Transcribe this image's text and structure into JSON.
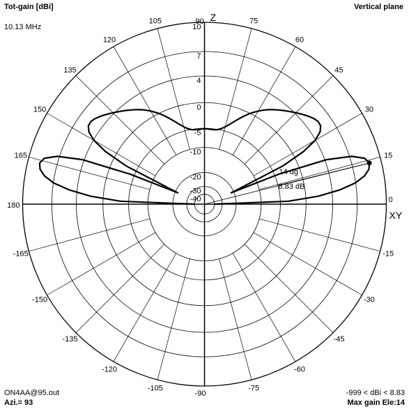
{
  "header": {
    "title": "Tot-gain [dBi]",
    "frequency": "10.13 MHz",
    "plane": "Vertical plane"
  },
  "footer": {
    "file": "ON4AA@95.out",
    "azimuth": "Azi.= 93",
    "range": "-999 < dBi < 8.83",
    "max_gain": "Max gain Ele:14"
  },
  "axis_labels": {
    "z": "Z",
    "xy": "XY"
  },
  "chart_data": {
    "type": "polar",
    "radial_scale": "log-periodic dBi",
    "radial_ticks": [
      "10",
      "7",
      "4",
      "0",
      "-5",
      "-10",
      "-20",
      "-30",
      "-40"
    ],
    "radial_tick_values": [
      10,
      7,
      4,
      0,
      -5,
      -10,
      -20,
      -30,
      -40
    ],
    "angle_ticks": [
      "0",
      "15",
      "30",
      "45",
      "60",
      "75",
      "90",
      "105",
      "120",
      "135",
      "150",
      "165",
      "180",
      "-165",
      "-150",
      "-135",
      "-120",
      "-105",
      "-90",
      "-75",
      "-60",
      "-45",
      "-30",
      "-15"
    ],
    "angle_tick_values": [
      0,
      15,
      30,
      45,
      60,
      75,
      90,
      105,
      120,
      135,
      150,
      165,
      180,
      -165,
      -150,
      -135,
      -120,
      -105,
      -90,
      -75,
      -60,
      -45,
      -30,
      -15
    ],
    "series": [
      {
        "elevation_deg": [
          0,
          2,
          4,
          6,
          8,
          10,
          12,
          14,
          16,
          18,
          20,
          22,
          23,
          24,
          26,
          28,
          30,
          32,
          34,
          36,
          38,
          40,
          42,
          44,
          46,
          48,
          50,
          52,
          54,
          56,
          58,
          60,
          62,
          64,
          66,
          68,
          70,
          72,
          74,
          76,
          78,
          80,
          82,
          84,
          86,
          88,
          90
        ],
        "gain_dbi": [
          -40,
          -3.26,
          2.02,
          5.0,
          6.95,
          8.06,
          8.65,
          8.83,
          8.49,
          7.23,
          4.25,
          -4.16,
          -21.5,
          -17.17,
          -2.63,
          1.75,
          3.94,
          5.05,
          5.52,
          5.57,
          5.38,
          5.07,
          4.71,
          4.33,
          3.94,
          3.56,
          3.19,
          2.8,
          2.4,
          1.98,
          1.5,
          0.98,
          0.4,
          -0.23,
          -0.93,
          -1.67,
          -2.42,
          -3.15,
          -3.8,
          -4.35,
          -4.77,
          -5.04,
          -5.18,
          -5.2,
          -5.17,
          -5.13,
          -5.11
        ],
        "symmetric_about_zenith": true
      }
    ],
    "max_gain_marker": {
      "elevation_deg": 14,
      "gain_dbi": 8.83,
      "label_angle": "14 dg",
      "label_gain": "8.83 dB"
    }
  }
}
